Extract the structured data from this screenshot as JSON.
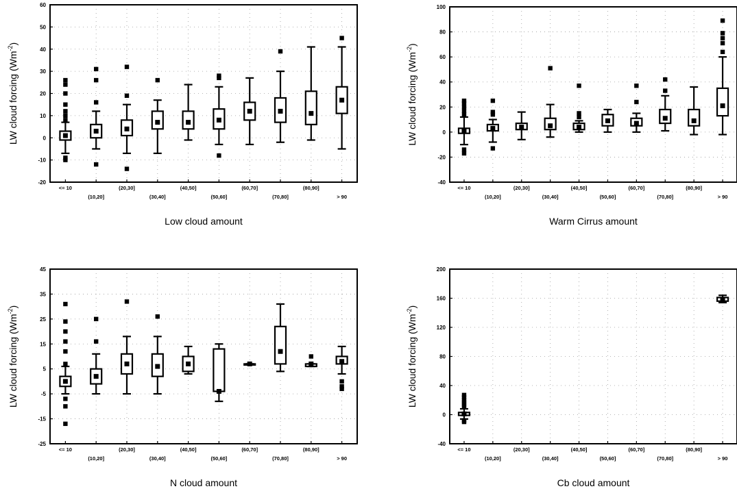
{
  "chart_data": [
    {
      "type": "box",
      "xlabel": "Low cloud amount",
      "ylabel": "LW cloud forcing (Wm",
      "ylabel_sup": "-2",
      "ylabel_close": ")",
      "categories": [
        "<= 10",
        "(10,20]",
        "(20,30]",
        "(30,40]",
        "(40,50]",
        "(50,60]",
        "(60,70]",
        "(70,80]",
        "(80,90]",
        "> 90"
      ],
      "ylim": [
        -20,
        60
      ],
      "yticks": [
        "60",
        "50",
        "40",
        "30",
        "20",
        "10",
        "0",
        "-10",
        "-20"
      ],
      "boxes": [
        {
          "median": 1,
          "q1": -1,
          "q3": 3,
          "min": -7,
          "max": 7,
          "outliers": [
            -10,
            -9,
            8,
            10,
            12,
            15,
            20,
            24,
            26
          ]
        },
        {
          "median": 3,
          "q1": 0,
          "q3": 6,
          "min": -5,
          "max": 12,
          "outliers": [
            -12,
            16,
            26,
            31
          ]
        },
        {
          "median": 4,
          "q1": 1,
          "q3": 8,
          "min": -7,
          "max": 15,
          "outliers": [
            -14,
            19,
            32
          ]
        },
        {
          "median": 7,
          "q1": 4,
          "q3": 12,
          "min": -7,
          "max": 17,
          "outliers": [
            26
          ]
        },
        {
          "median": 7,
          "q1": 4,
          "q3": 12,
          "min": -1,
          "max": 24,
          "outliers": []
        },
        {
          "median": 8,
          "q1": 4,
          "q3": 13,
          "min": -3,
          "max": 23,
          "outliers": [
            -8,
            27,
            28
          ]
        },
        {
          "median": 12,
          "q1": 8,
          "q3": 16,
          "min": -3,
          "max": 27,
          "outliers": []
        },
        {
          "median": 12,
          "q1": 7,
          "q3": 18,
          "min": -2,
          "max": 30,
          "outliers": [
            39
          ]
        },
        {
          "median": 11,
          "q1": 6,
          "q3": 21,
          "min": -1,
          "max": 41,
          "outliers": []
        },
        {
          "median": 17,
          "q1": 11,
          "q3": 23,
          "min": -5,
          "max": 41,
          "outliers": [
            45
          ]
        }
      ]
    },
    {
      "type": "box",
      "xlabel": "Warm Cirrus amount",
      "ylabel": "LW cloud forcing (Wm",
      "ylabel_sup": "-2",
      "ylabel_close": ")",
      "categories": [
        "<= 10",
        "(10,20]",
        "(20,30]",
        "(30,40]",
        "(40,50]",
        "(50,60]",
        "(60,70]",
        "(70,80]",
        "(80,90]",
        "> 90"
      ],
      "ylim": [
        -40,
        100
      ],
      "yticks": [
        "100",
        "80",
        "60",
        "40",
        "20",
        "0",
        "-20",
        "-40"
      ],
      "boxes": [
        {
          "median": 1,
          "q1": -1,
          "q3": 3,
          "min": -10,
          "max": 12,
          "outliers": [
            -17,
            -14,
            14,
            17,
            20,
            23,
            25
          ]
        },
        {
          "median": 3,
          "q1": 1,
          "q3": 6,
          "min": -8,
          "max": 10,
          "outliers": [
            -13,
            14,
            16,
            25
          ]
        },
        {
          "median": 4,
          "q1": 2,
          "q3": 7,
          "min": -6,
          "max": 16,
          "outliers": []
        },
        {
          "median": 5,
          "q1": 2,
          "q3": 11,
          "min": -4,
          "max": 22,
          "outliers": [
            51
          ]
        },
        {
          "median": 4,
          "q1": 2,
          "q3": 7,
          "min": 0,
          "max": 9,
          "outliers": [
            12,
            15,
            37
          ]
        },
        {
          "median": 9,
          "q1": 5,
          "q3": 14,
          "min": 0,
          "max": 18,
          "outliers": []
        },
        {
          "median": 7,
          "q1": 5,
          "q3": 11,
          "min": 0,
          "max": 15,
          "outliers": [
            24,
            37
          ]
        },
        {
          "median": 11,
          "q1": 7,
          "q3": 18,
          "min": 1,
          "max": 29,
          "outliers": [
            33,
            42
          ]
        },
        {
          "median": 9,
          "q1": 5,
          "q3": 18,
          "min": -2,
          "max": 36,
          "outliers": []
        },
        {
          "median": 21,
          "q1": 13,
          "q3": 35,
          "min": -2,
          "max": 60,
          "outliers": [
            64,
            71,
            75,
            79,
            89
          ]
        }
      ]
    },
    {
      "type": "box",
      "xlabel": "N cloud amount",
      "ylabel": "LW cloud forcing (Wm",
      "ylabel_sup": "-2",
      "ylabel_close": ")",
      "categories": [
        "<= 10",
        "(10,20]",
        "(20,30]",
        "(30,40]",
        "(40,50]",
        "(50,60]",
        "(60,70]",
        "(70,80]",
        "(80,90]",
        "> 90"
      ],
      "ylim": [
        -25,
        45
      ],
      "yticks": [
        "45",
        "35",
        "25",
        "15",
        "5",
        "-5",
        "-15",
        "-25"
      ],
      "boxes": [
        {
          "median": 0,
          "q1": -2,
          "q3": 2,
          "min": -5,
          "max": 6,
          "outliers": [
            -17,
            -10,
            -7,
            7,
            12,
            16,
            20,
            24,
            31
          ]
        },
        {
          "median": 2,
          "q1": -1,
          "q3": 5,
          "min": -5,
          "max": 11,
          "outliers": [
            16,
            25
          ]
        },
        {
          "median": 7,
          "q1": 3,
          "q3": 11,
          "min": -5,
          "max": 18,
          "outliers": [
            32
          ]
        },
        {
          "median": 6,
          "q1": 2,
          "q3": 11,
          "min": -5,
          "max": 18,
          "outliers": [
            26
          ]
        },
        {
          "median": 7,
          "q1": 4,
          "q3": 10,
          "min": 3,
          "max": 14,
          "outliers": []
        },
        {
          "median": -4,
          "q1": -4,
          "q3": 13,
          "min": -8,
          "max": 15,
          "outliers": []
        },
        {
          "median": 7,
          "q1": 7,
          "q3": 7,
          "min": 7,
          "max": 7,
          "outliers": []
        },
        {
          "median": 12,
          "q1": 7,
          "q3": 22,
          "min": 4,
          "max": 31,
          "outliers": []
        },
        {
          "median": 7,
          "q1": 6,
          "q3": 7,
          "min": 6,
          "max": 7,
          "outliers": [
            10
          ]
        },
        {
          "median": 8,
          "q1": 7,
          "q3": 10,
          "min": 3,
          "max": 14,
          "outliers": [
            -3,
            -2,
            0
          ]
        }
      ]
    },
    {
      "type": "box",
      "xlabel": "Cb cloud amount",
      "ylabel": "LW cloud forcing (Wm",
      "ylabel_sup": "-2",
      "ylabel_close": ")",
      "categories": [
        "<= 10",
        "(10,20]",
        "(20,30]",
        "(30,40]",
        "(40,50]",
        "(50,60]",
        "(60,70]",
        "(70,80]",
        "(80,90]",
        "> 90"
      ],
      "ylim": [
        -40,
        200
      ],
      "yticks": [
        "200",
        "160",
        "120",
        "80",
        "40",
        "0",
        "-40"
      ],
      "boxes": [
        {
          "median": 1,
          "q1": -1,
          "q3": 3,
          "min": -6,
          "max": 8,
          "outliers": [
            -10,
            -8,
            11,
            14,
            17,
            20,
            24,
            27
          ]
        },
        null,
        null,
        null,
        null,
        null,
        null,
        null,
        null,
        {
          "median": 158,
          "q1": 156,
          "q3": 161,
          "min": 154,
          "max": 164,
          "outliers": []
        }
      ]
    }
  ]
}
